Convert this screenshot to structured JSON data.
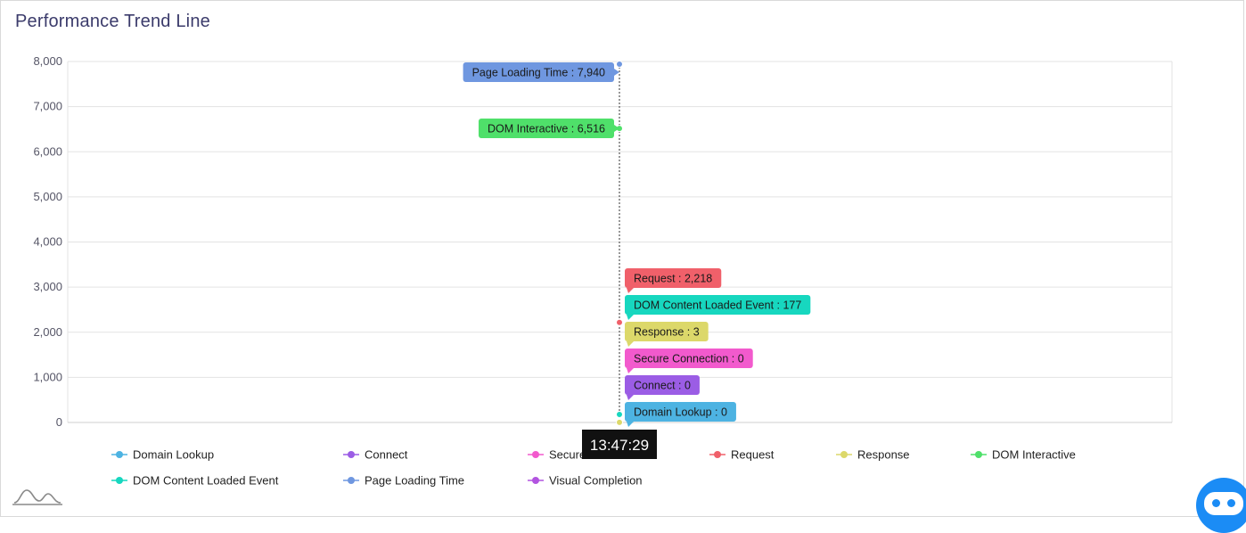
{
  "title": "Performance Trend Line",
  "tooltip_time": "13:47:29",
  "chart_data": {
    "type": "line",
    "title": "Performance Trend Line",
    "ylim": [
      0,
      8000
    ],
    "y_ticks": [
      "0",
      "1,000",
      "2,000",
      "3,000",
      "4,000",
      "5,000",
      "6,000",
      "7,000",
      "8,000"
    ],
    "y_tick_values": [
      0,
      1000,
      2000,
      3000,
      4000,
      5000,
      6000,
      7000,
      8000
    ],
    "grid": true,
    "legend_position": "bottom",
    "x": [
      "13:47:29"
    ],
    "series": [
      {
        "name": "Domain Lookup",
        "color": "#4db3e2",
        "values": [
          0
        ],
        "label": "Domain Lookup : 0"
      },
      {
        "name": "Connect",
        "color": "#9b5de5",
        "values": [
          0
        ],
        "label": "Connect : 0"
      },
      {
        "name": "Secure Connection",
        "color": "#f25acd",
        "values": [
          0
        ],
        "label": "Secure Connection : 0"
      },
      {
        "name": "Request",
        "color": "#f0606a",
        "values": [
          2218
        ],
        "label": "Request : 2,218"
      },
      {
        "name": "Response",
        "color": "#dcd86a",
        "values": [
          3
        ],
        "label": "Response : 3"
      },
      {
        "name": "DOM Interactive",
        "color": "#4fe06a",
        "values": [
          6516
        ],
        "label": "DOM Interactive : 6,516"
      },
      {
        "name": "DOM Content Loaded Event",
        "color": "#17d7bf",
        "values": [
          177
        ],
        "label": "DOM Content Loaded Event : 177"
      },
      {
        "name": "Page Loading Time",
        "color": "#6f97e0",
        "values": [
          7940
        ],
        "label": "Page Loading Time : 7,940"
      },
      {
        "name": "Visual Completion",
        "color": "#b254e0",
        "values": [
          null
        ],
        "label": ""
      }
    ]
  },
  "icons": {
    "logo": "trend-mountain-icon",
    "chatbot": "chatbot-icon"
  }
}
